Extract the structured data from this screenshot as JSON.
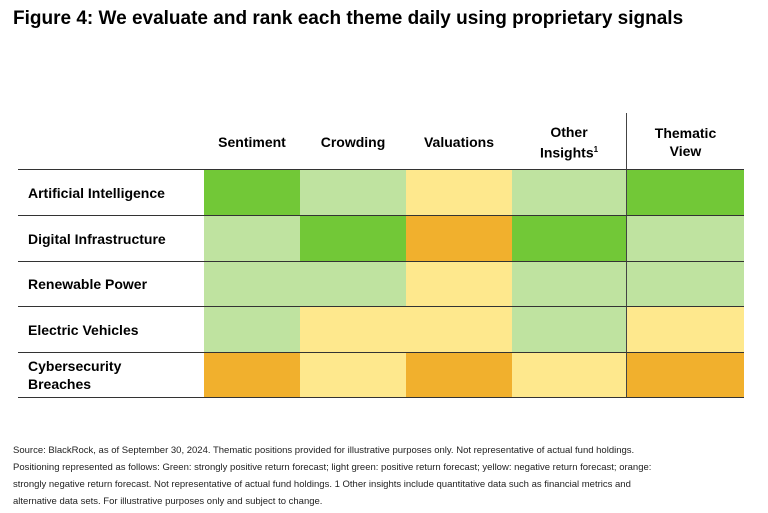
{
  "title": "Figure 4: We evaluate and rank each theme daily using proprietary signals",
  "chart_data": {
    "type": "heatmap",
    "columns": [
      "Sentiment",
      "Crowding",
      "Valuations",
      "Other Insights",
      "Thematic View"
    ],
    "rows": [
      "Artificial Intelligence",
      "Digital Infrastructure",
      "Renewable Power",
      "Electric Vehicles",
      "Cybersecurity Breaches"
    ],
    "values": [
      [
        "Green",
        "light green",
        "yellow",
        "light green",
        "Green"
      ],
      [
        "light green",
        "Green",
        "orange",
        "Green",
        "light green"
      ],
      [
        "light green",
        "light green",
        "yellow",
        "light green",
        "light green"
      ],
      [
        "light green",
        "yellow",
        "yellow",
        "light green",
        "yellow"
      ],
      [
        "orange",
        "yellow",
        "orange",
        "yellow",
        "orange"
      ]
    ],
    "colors": {
      "Green": "#72c837",
      "light green": "#bfe3a0",
      "yellow": "#fee88d",
      "orange": "#f1b02d"
    }
  },
  "header": {
    "other_insights_main": "Other",
    "other_insights_second": "Insights",
    "other_insights_sup": "1",
    "thematic_main": "Thematic",
    "thematic_second": "View"
  },
  "footnote": {
    "line1": "Source: BlackRock, as of September 30, 2024. Thematic positions provided for illustrative purposes only. Not representative of actual fund holdings.",
    "line2": "Positioning represented as follows: Green: strongly positive return forecast; light green: positive return forecast; yellow: negative return forecast; orange:",
    "line3": "strongly negative return forecast. Not representative of actual fund holdings. 1 Other insights include quantitative data such as financial metrics and",
    "line4": "alternative data sets. For illustrative purposes only and subject to change."
  }
}
